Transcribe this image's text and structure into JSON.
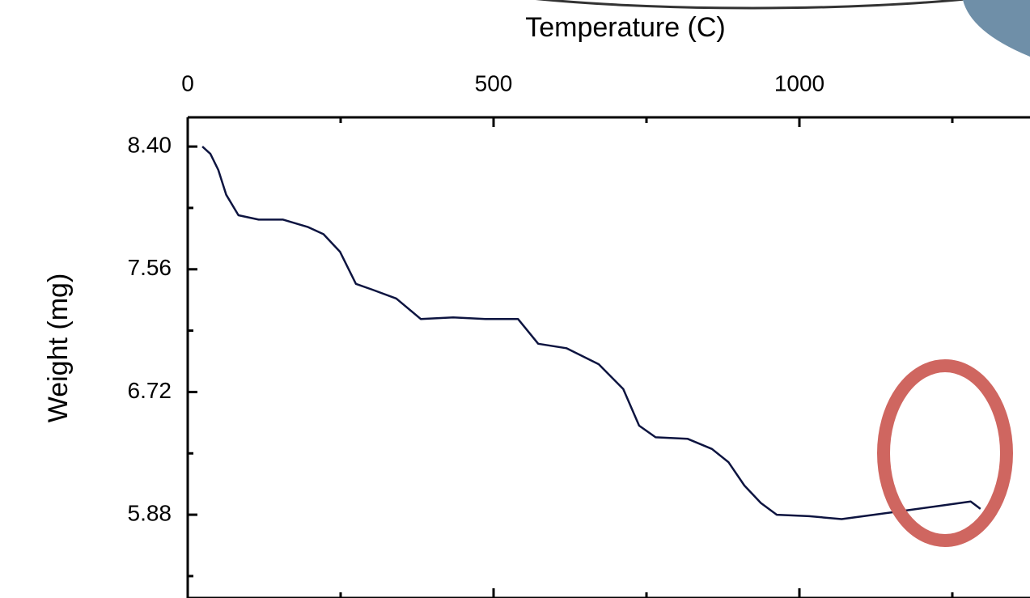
{
  "chart_data": {
    "type": "line",
    "x_label": "Temperature (C)",
    "y_label": "Weight (mg)",
    "x": [
      24,
      37,
      50,
      63,
      83,
      116,
      156,
      196,
      222,
      249,
      275,
      302,
      341,
      381,
      434,
      487,
      540,
      573,
      619,
      672,
      712,
      738,
      765,
      817,
      857,
      884,
      910,
      937,
      963,
      1016,
      1069,
      1122,
      1175,
      1228,
      1280,
      1296
    ],
    "series": [
      {
        "color": "#0d1440",
        "values": [
          8.4,
          8.35,
          8.24,
          8.07,
          7.93,
          7.9,
          7.9,
          7.85,
          7.8,
          7.68,
          7.46,
          7.42,
          7.36,
          7.22,
          7.23,
          7.22,
          7.22,
          7.05,
          7.02,
          6.91,
          6.74,
          6.49,
          6.41,
          6.4,
          6.33,
          6.24,
          6.08,
          5.96,
          5.88,
          5.87,
          5.85,
          5.88,
          5.91,
          5.94,
          5.97,
          5.92
        ]
      }
    ],
    "xlim": [
      0,
      1377
    ],
    "ylim": [
      5.31,
      8.6
    ],
    "xticks": [
      0,
      500,
      1000
    ],
    "xminor_ticks": [
      250,
      750,
      1250
    ],
    "yticks": [
      {
        "value": 8.4,
        "label": "8.40"
      },
      {
        "value": 7.56,
        "label": "7.56"
      },
      {
        "value": 6.72,
        "label": "6.72"
      },
      {
        "value": 5.88,
        "label": "5.88"
      }
    ],
    "yminor_ticks": [
      7.98,
      7.14,
      6.3,
      5.46
    ],
    "x_axis_position": "top",
    "grid": false
  }
}
